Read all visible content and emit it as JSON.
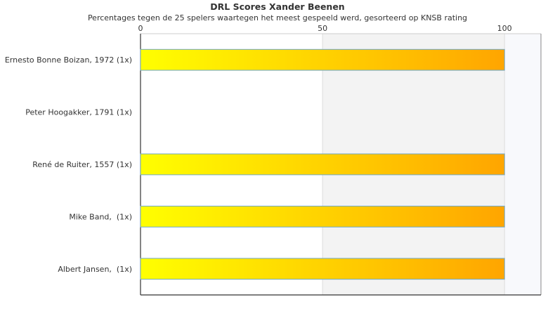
{
  "chart_data": {
    "type": "bar",
    "orientation": "horizontal",
    "title": "DRL Scores Xander Beenen",
    "subtitle": "Percentages tegen de 25 spelers waartegen het meest gespeeld werd, gesorteerd op KNSB rating",
    "categories": [
      "Ernesto Bonne Boizan, 1972 (1x)",
      "Peter Hoogakker, 1791 (1x)",
      "René de Ruiter, 1557 (1x)",
      "Mike Band,  (1x)",
      "Albert Jansen,  (1x)"
    ],
    "values": [
      100,
      0,
      100,
      100,
      100
    ],
    "x_ticks": [
      "0",
      "50",
      "100"
    ],
    "xlim": [
      0,
      110
    ],
    "xaxis_position": "top",
    "grid": true,
    "colors": {
      "bar_start": "#ffff00",
      "bar_end": "#ffa500",
      "bar_border": "#6fa8c8",
      "band_shade": "#f3f3f3",
      "band_light": "#f8f9fc"
    }
  }
}
